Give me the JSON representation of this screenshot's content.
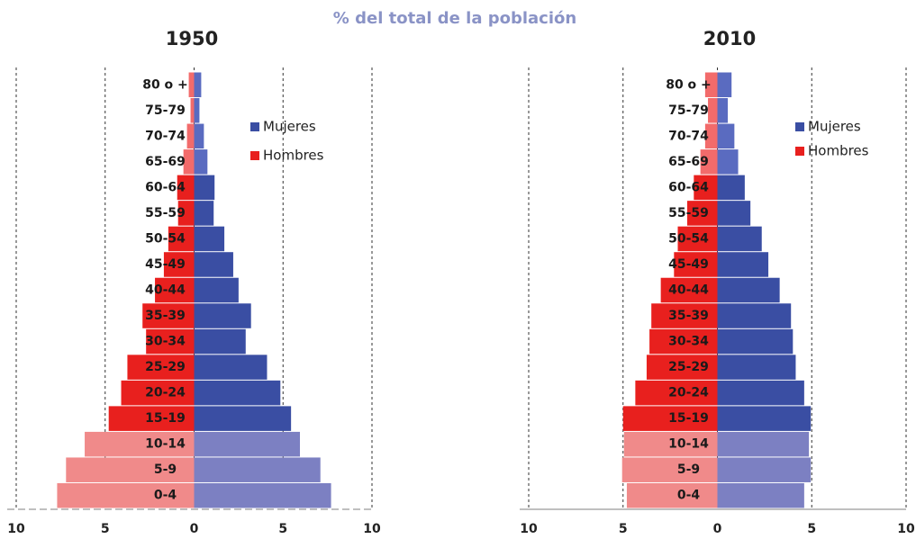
{
  "title": "% del total de la población",
  "chart_data": [
    {
      "type": "pyramid",
      "title": "1950",
      "categories": [
        "80 o +",
        "75-79",
        "70-74",
        "65-69",
        "60-64",
        "55-59",
        "50-54",
        "45-49",
        "40-44",
        "35-39",
        "30-34",
        "25-29",
        "20-24",
        "15-19",
        "10-14",
        "5-9",
        "0-4"
      ],
      "series": [
        {
          "name": "Mujeres",
          "color": "#3a4ea3",
          "colors": [
            "#5a6bc0",
            "#5a6bc0",
            "#5a6bc0",
            "#5a6bc0",
            "#3a4ea3",
            "#3a4ea3",
            "#3a4ea3",
            "#3a4ea3",
            "#3a4ea3",
            "#3a4ea3",
            "#3a4ea3",
            "#3a4ea3",
            "#3a4ea3",
            "#3a4ea3",
            "#7c80c2",
            "#7c80c2",
            "#7c80c2"
          ],
          "values": [
            0.4,
            0.3,
            0.55,
            0.75,
            1.15,
            1.1,
            1.7,
            2.2,
            2.5,
            3.2,
            2.9,
            4.1,
            4.85,
            5.45,
            5.95,
            7.1,
            7.7
          ]
        },
        {
          "name": "Hombres",
          "color": "#e8201e",
          "colors": [
            "#f26b6b",
            "#f26b6b",
            "#f26b6b",
            "#f26b6b",
            "#e8201e",
            "#e8201e",
            "#e8201e",
            "#e8201e",
            "#e8201e",
            "#e8201e",
            "#e8201e",
            "#e8201e",
            "#e8201e",
            "#e8201e",
            "#f08a8a",
            "#f08a8a",
            "#f08a8a"
          ],
          "values": [
            0.3,
            0.2,
            0.4,
            0.6,
            0.95,
            0.9,
            1.45,
            1.7,
            2.2,
            2.9,
            2.7,
            3.75,
            4.1,
            4.8,
            6.15,
            7.2,
            7.7
          ]
        }
      ],
      "xlim": [
        -10,
        10
      ],
      "xticks": [
        {
          "value": -10,
          "label": "10"
        },
        {
          "value": -5,
          "label": "5"
        },
        0,
        5,
        10
      ],
      "grid": true
    },
    {
      "type": "pyramid",
      "title": "2010",
      "categories": [
        "80 o +",
        "75-79",
        "70-74",
        "65-69",
        "60-64",
        "55-59",
        "50-54",
        "45-49",
        "40-44",
        "35-39",
        "30-34",
        "25-29",
        "20-24",
        "15-19",
        "10-14",
        "5-9",
        "0-4"
      ],
      "series": [
        {
          "name": "Mujeres",
          "color": "#3a4ea3",
          "colors": [
            "#5a6bc0",
            "#5a6bc0",
            "#5a6bc0",
            "#5a6bc0",
            "#3a4ea3",
            "#3a4ea3",
            "#3a4ea3",
            "#3a4ea3",
            "#3a4ea3",
            "#3a4ea3",
            "#3a4ea3",
            "#3a4ea3",
            "#3a4ea3",
            "#3a4ea3",
            "#7c80c2",
            "#7c80c2",
            "#7c80c2"
          ],
          "values": [
            0.75,
            0.55,
            0.9,
            1.1,
            1.45,
            1.75,
            2.35,
            2.7,
            3.3,
            3.9,
            4.0,
            4.15,
            4.6,
            4.95,
            4.85,
            4.95,
            4.6
          ]
        },
        {
          "name": "Hombres",
          "color": "#e8201e",
          "colors": [
            "#f26b6b",
            "#f26b6b",
            "#f26b6b",
            "#f26b6b",
            "#e8201e",
            "#e8201e",
            "#e8201e",
            "#e8201e",
            "#e8201e",
            "#e8201e",
            "#e8201e",
            "#e8201e",
            "#e8201e",
            "#e8201e",
            "#f08a8a",
            "#f08a8a",
            "#f08a8a"
          ],
          "values": [
            0.65,
            0.5,
            0.65,
            0.9,
            1.25,
            1.6,
            2.1,
            2.3,
            3.0,
            3.5,
            3.6,
            3.75,
            4.35,
            5.0,
            4.95,
            5.05,
            4.8
          ]
        }
      ],
      "xlim": [
        -10,
        10
      ],
      "xticks": [
        {
          "value": -10,
          "label": "10"
        },
        {
          "value": -5,
          "label": "5"
        },
        0,
        5,
        10
      ],
      "grid": true
    }
  ]
}
